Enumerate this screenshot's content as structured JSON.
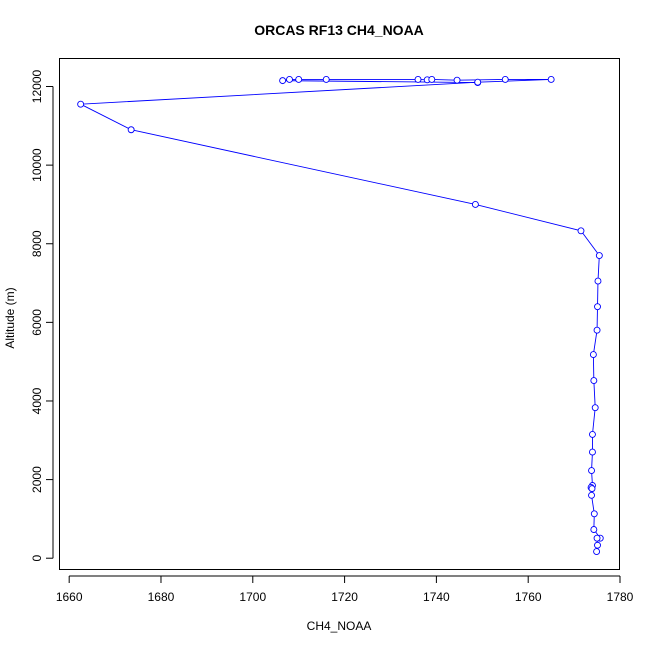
{
  "chart_data": {
    "type": "line",
    "title": "ORCAS RF13 CH4_NOAA",
    "xlabel": "CH4_NOAA",
    "ylabel": "Altitude (m)",
    "xlim": [
      1658,
      1780
    ],
    "ylim": [
      -300,
      12700
    ],
    "xticks": [
      1660,
      1680,
      1700,
      1720,
      1740,
      1760,
      1780
    ],
    "yticks": [
      0,
      2000,
      4000,
      6000,
      8000,
      10000,
      12000
    ],
    "grid": false,
    "legend": "none",
    "colors": {
      "series": "#0000ff",
      "axis": "#000000"
    },
    "series": [
      {
        "name": "CH4_NOAA",
        "points": [
          [
            1749,
            12100
          ],
          [
            1706.5,
            12150
          ],
          [
            1708,
            12180
          ],
          [
            1710,
            12180
          ],
          [
            1716,
            12180
          ],
          [
            1736,
            12180
          ],
          [
            1738,
            12170
          ],
          [
            1739,
            12180
          ],
          [
            1744.5,
            12160
          ],
          [
            1755,
            12180
          ],
          [
            1765,
            12180
          ],
          [
            1749,
            12110
          ],
          [
            1662.5,
            11550
          ],
          [
            1673.5,
            10900
          ],
          [
            1748.5,
            9000
          ],
          [
            1771.5,
            8330
          ],
          [
            1775.5,
            7700
          ],
          [
            1775.2,
            7050
          ],
          [
            1775.1,
            6400
          ],
          [
            1775.0,
            5800
          ],
          [
            1774.2,
            5180
          ],
          [
            1774.3,
            4520
          ],
          [
            1774.6,
            3830
          ],
          [
            1774.0,
            3150
          ],
          [
            1774.0,
            2700
          ],
          [
            1773.8,
            2230
          ],
          [
            1774.0,
            1850
          ],
          [
            1773.7,
            1800
          ],
          [
            1773.9,
            1770
          ],
          [
            1773.8,
            1600
          ],
          [
            1774.4,
            1130
          ],
          [
            1774.3,
            730
          ],
          [
            1775.7,
            510
          ],
          [
            1775.0,
            510
          ],
          [
            1775.1,
            330
          ],
          [
            1774.9,
            170
          ]
        ]
      }
    ]
  }
}
